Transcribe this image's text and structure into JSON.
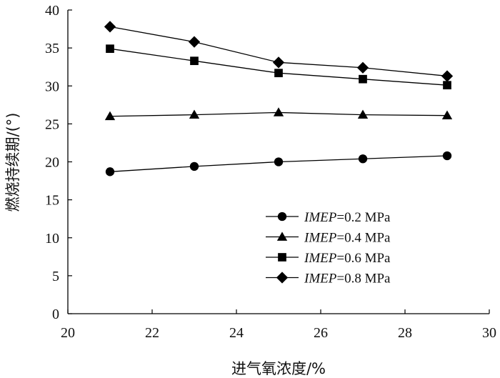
{
  "chart_data": {
    "type": "line",
    "xlabel": "进气氧浓度/%",
    "ylabel": "燃烧持续期/(°)",
    "xlim": [
      20,
      30
    ],
    "ylim": [
      0,
      40
    ],
    "xticks": [
      20,
      22,
      24,
      26,
      28,
      30
    ],
    "yticks": [
      0,
      5,
      10,
      15,
      20,
      25,
      30,
      35,
      40
    ],
    "grid": false,
    "legend_position": "bottom-right",
    "x": [
      21,
      23,
      25,
      27,
      29
    ],
    "series": [
      {
        "name_var": "IMEP",
        "name_value": "=0.2 MPa",
        "marker": "circle",
        "values": [
          18.7,
          19.4,
          20.0,
          20.4,
          20.8
        ]
      },
      {
        "name_var": "IMEP",
        "name_value": "=0.4 MPa",
        "marker": "triangle",
        "values": [
          26.0,
          26.2,
          26.5,
          26.2,
          26.1
        ]
      },
      {
        "name_var": "IMEP",
        "name_value": "=0.6 MPa",
        "marker": "square",
        "values": [
          34.9,
          33.3,
          31.7,
          30.9,
          30.1
        ]
      },
      {
        "name_var": "IMEP",
        "name_value": "=0.8 MPa",
        "marker": "diamond",
        "values": [
          37.8,
          35.8,
          33.1,
          32.4,
          31.3
        ]
      }
    ]
  }
}
